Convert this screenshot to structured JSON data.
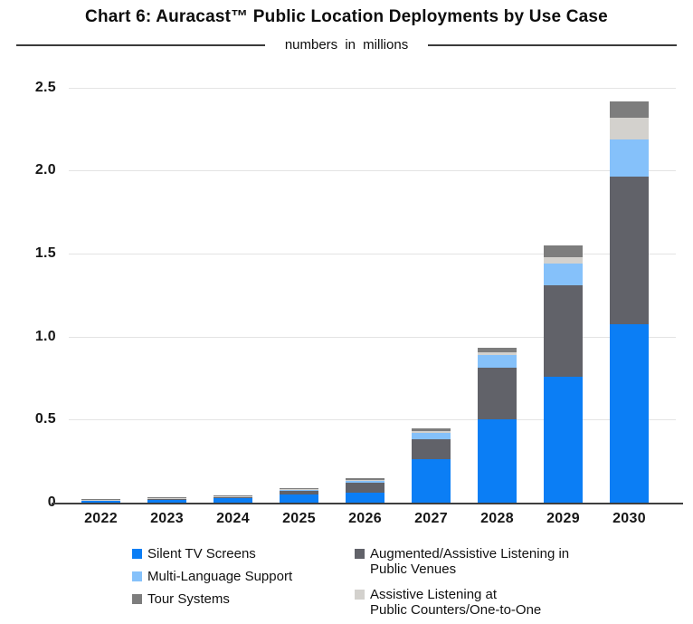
{
  "header": {
    "title": "Chart 6: Auracast™ Public Location Deployments by Use Case",
    "subtitle": "numbers in millions"
  },
  "colors": {
    "silent_tv": "#0b7ef5",
    "multi_language": "#85c1fa",
    "tour_systems": "#7d7d7d",
    "public_venues": "#616269",
    "public_counters": "#d3d1cd",
    "gridline": "#e4e4e4",
    "axis_line": "#3f3f3f",
    "text": "#121212"
  },
  "chart_data": {
    "type": "bar",
    "stacked": true,
    "title": "Chart 6: Auracast™ Public Location Deployments by Use Case",
    "subtitle": "numbers in millions",
    "unit": "millions",
    "categories": [
      "2022",
      "2023",
      "2024",
      "2025",
      "2026",
      "2027",
      "2028",
      "2029",
      "2030"
    ],
    "stack_order": "bottom-to-top",
    "series": [
      {
        "name": "Silent TV Screens",
        "color_key": "silent_tv",
        "values": [
          0.012,
          0.018,
          0.025,
          0.048,
          0.06,
          0.26,
          0.5,
          0.76,
          1.075
        ]
      },
      {
        "name": "Augmented/Assistive Listening in Public Venues",
        "color_key": "public_venues",
        "values": [
          0.004,
          0.006,
          0.009,
          0.025,
          0.058,
          0.123,
          0.315,
          0.55,
          0.89
        ]
      },
      {
        "name": "Multi-Language Support",
        "color_key": "multi_language",
        "values": [
          0.002,
          0.003,
          0.004,
          0.005,
          0.014,
          0.035,
          0.075,
          0.13,
          0.22
        ]
      },
      {
        "name": "Assistive Listening at Public Counters/One-to-One",
        "color_key": "public_counters",
        "values": [
          0.001,
          0.001,
          0.002,
          0.002,
          0.003,
          0.012,
          0.015,
          0.037,
          0.13
        ]
      },
      {
        "name": "Tour Systems",
        "color_key": "tour_systems",
        "values": [
          0.004,
          0.005,
          0.005,
          0.006,
          0.01,
          0.017,
          0.03,
          0.072,
          0.1
        ]
      }
    ],
    "totals": [
      0.023,
      0.033,
      0.045,
      0.086,
      0.145,
      0.447,
      0.935,
      1.549,
      2.415
    ],
    "ylim": [
      0,
      2.5
    ],
    "yticks": [
      {
        "value": 0,
        "label": "0"
      },
      {
        "value": 0.5,
        "label": "0.5"
      },
      {
        "value": 1,
        "label": "1.0"
      },
      {
        "value": 1.5,
        "label": "1.5"
      },
      {
        "value": 2,
        "label": "2.0"
      },
      {
        "value": 2.5,
        "label": "2.5"
      }
    ],
    "grid": true,
    "legend_position": "bottom"
  },
  "legend": {
    "columns": [
      {
        "items": [
          {
            "lines": [
              "Silent TV Screens"
            ],
            "color_key": "silent_tv"
          },
          {
            "lines": [
              "Multi-Language Support"
            ],
            "color_key": "multi_language"
          },
          {
            "lines": [
              "Tour Systems"
            ],
            "color_key": "tour_systems"
          }
        ]
      },
      {
        "items": [
          {
            "lines": [
              "Augmented/Assistive Listening in",
              "Public Venues"
            ],
            "color_key": "public_venues"
          },
          {
            "lines": [
              "Assistive Listening at",
              "Public Counters/One-to-One"
            ],
            "color_key": "public_counters"
          }
        ]
      }
    ]
  }
}
